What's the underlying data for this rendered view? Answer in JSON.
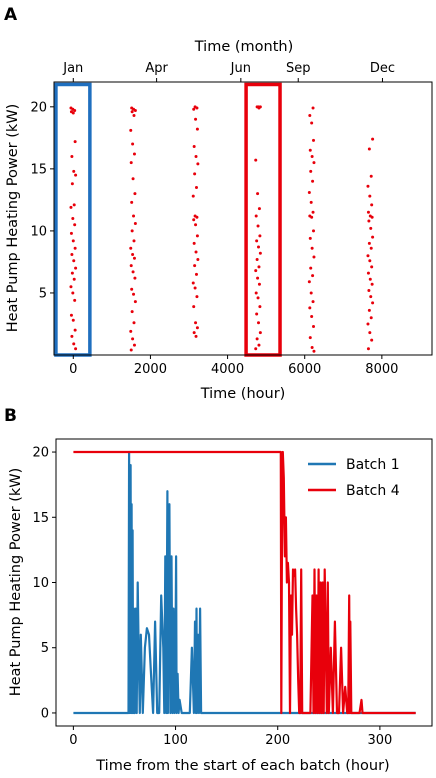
{
  "panels": {
    "a_label": "A",
    "b_label": "B"
  },
  "chart_data": [
    {
      "type": "scatter",
      "panel": "A",
      "xlabel": "Time (hour)",
      "ylabel": "Heat Pump Heating Power (kW)",
      "xlim": [
        -500,
        9300
      ],
      "ylim": [
        0,
        22
      ],
      "xticks": [
        0,
        2000,
        4000,
        6000,
        8000
      ],
      "yticks": [
        5,
        10,
        15,
        20
      ],
      "top_axis": {
        "label": "Time (month)",
        "ticks": [
          {
            "label": "Jan",
            "x": 0
          },
          {
            "label": "Apr",
            "x": 2160
          },
          {
            "label": "Jun",
            "x": 4344
          },
          {
            "label": "Sep",
            "x": 5832
          },
          {
            "label": "Dec",
            "x": 8016
          }
        ]
      },
      "marker_color": "#e8000b",
      "series": [
        {
          "x_center": 0,
          "values": [
            19.9,
            19.8,
            19.7,
            19.6,
            19.5,
            17.2,
            16.0,
            14.8,
            14.5,
            13.8,
            12.1,
            11.9,
            11.0,
            10.5,
            9.8,
            9.2,
            8.6,
            8.1,
            7.6,
            7.0,
            6.6,
            6.1,
            5.5,
            5.0,
            4.4,
            3.2,
            2.8,
            2.0,
            1.5,
            0.9,
            0.5
          ]
        },
        {
          "x_center": 1550,
          "values": [
            19.9,
            19.8,
            19.7,
            19.6,
            19.3,
            18.1,
            17.0,
            16.2,
            15.5,
            14.2,
            13.0,
            12.3,
            11.2,
            10.6,
            10.0,
            9.2,
            8.6,
            8.1,
            7.8,
            7.2,
            6.7,
            6.2,
            5.3,
            4.9,
            4.3,
            3.5,
            2.6,
            1.9,
            1.3,
            0.8,
            0.4
          ]
        },
        {
          "x_center": 3170,
          "values": [
            20.0,
            19.9,
            19.8,
            19.0,
            18.2,
            16.8,
            16.0,
            15.4,
            14.6,
            13.5,
            12.8,
            11.2,
            11.1,
            10.9,
            10.5,
            9.6,
            9.0,
            8.3,
            7.7,
            7.2,
            6.5,
            5.8,
            5.4,
            4.7,
            3.9,
            2.6,
            2.2,
            1.8,
            1.5
          ]
        },
        {
          "x_center": 4790,
          "values": [
            20.0,
            20.0,
            20.0,
            19.9,
            15.7,
            13.0,
            11.8,
            11.2,
            10.4,
            9.6,
            9.2,
            8.7,
            8.2,
            7.7,
            7.1,
            6.8,
            6.2,
            5.7,
            5.0,
            4.6,
            3.9,
            3.3,
            2.6,
            1.8,
            1.3,
            0.8,
            0.5
          ]
        },
        {
          "x_center": 6180,
          "values": [
            19.9,
            19.3,
            18.7,
            17.3,
            16.5,
            16.0,
            15.5,
            14.8,
            14.0,
            13.1,
            12.3,
            11.5,
            11.2,
            11.1,
            10.0,
            9.4,
            8.6,
            7.9,
            7.0,
            6.4,
            5.9,
            5.0,
            4.3,
            3.8,
            3.1,
            2.3,
            1.4,
            0.6,
            0.3
          ]
        },
        {
          "x_center": 7700,
          "values": [
            17.4,
            16.6,
            14.4,
            13.6,
            12.8,
            12.1,
            11.5,
            11.2,
            11.1,
            10.8,
            10.2,
            9.5,
            9.0,
            8.6,
            8.0,
            7.6,
            7.1,
            6.6,
            6.1,
            5.7,
            5.2,
            4.7,
            4.2,
            3.6,
            3.0,
            2.5,
            1.8,
            1.2,
            0.5
          ]
        }
      ],
      "highlight_boxes": [
        {
          "name": "blue",
          "color": "#1f6fbf",
          "x_range": [
            -450,
            430
          ],
          "y_range": [
            0,
            21.8
          ]
        },
        {
          "name": "red",
          "color": "#e8000b",
          "x_range": [
            4480,
            5360
          ],
          "y_range": [
            0,
            21.8
          ]
        }
      ]
    },
    {
      "type": "line",
      "panel": "B",
      "xlabel": "Time from the start of each batch (hour)",
      "ylabel": "Heat Pump Heating Power (kW)",
      "xlim": [
        -17,
        351
      ],
      "ylim": [
        -1,
        21
      ],
      "xticks": [
        0,
        100,
        200,
        300
      ],
      "yticks": [
        0,
        5,
        10,
        15,
        20
      ],
      "legend_position": "top-right",
      "series": [
        {
          "name": "Batch 1",
          "color": "#1f77b4",
          "x": [
            0,
            54,
            54.5,
            55,
            56,
            56.5,
            57,
            57.5,
            58,
            58.5,
            59,
            59.5,
            60,
            61,
            62,
            63,
            64,
            65,
            66,
            67,
            68,
            70,
            72,
            74,
            76,
            78,
            80,
            82,
            84,
            86,
            88,
            89,
            90,
            91,
            92,
            92.5,
            93,
            94,
            95,
            96,
            97,
            98,
            99,
            100,
            100.5,
            101,
            102,
            103,
            104,
            106,
            108,
            110,
            112,
            114,
            116,
            118,
            119,
            120,
            120.5,
            121,
            122,
            123,
            124,
            125,
            126,
            130,
            200,
            335
          ],
          "y": [
            0,
            0,
            20,
            0,
            19,
            0,
            16,
            0,
            14,
            0,
            8,
            0,
            0,
            8,
            0,
            10,
            4,
            0,
            6,
            3,
            0,
            5,
            6.5,
            6,
            3,
            0,
            7,
            0,
            0,
            9,
            5,
            0,
            12,
            0,
            17,
            0,
            8,
            16,
            0,
            12,
            0,
            8,
            0,
            5,
            12,
            0,
            3,
            0,
            1,
            0,
            0,
            0,
            0,
            0,
            5,
            0,
            7,
            0,
            8,
            0,
            6,
            0,
            8,
            0,
            0,
            0,
            0,
            0
          ]
        },
        {
          "name": "Batch 4",
          "color": "#e8000b",
          "x": [
            0,
            203,
            203.5,
            204,
            205,
            206,
            207,
            208,
            209,
            210,
            211,
            212,
            213,
            214,
            215,
            216,
            217,
            218,
            219,
            220,
            221,
            222,
            223,
            224,
            225,
            226,
            228,
            230,
            232,
            234,
            235,
            236,
            237,
            238,
            239,
            240,
            241,
            242,
            243,
            244,
            245,
            246,
            247,
            248,
            249,
            250,
            252,
            254,
            256,
            258,
            260,
            262,
            264,
            266,
            268,
            269,
            270,
            270.5,
            271,
            272,
            274,
            278,
            280,
            282,
            283,
            284,
            286,
            300,
            335
          ],
          "y": [
            20,
            20,
            0,
            10.5,
            20,
            18,
            12,
            15,
            10,
            11.5,
            10,
            0,
            9,
            6,
            11,
            10.5,
            11,
            8,
            6,
            2.5,
            0,
            0,
            11,
            0,
            0,
            0,
            0,
            0,
            0,
            9,
            0,
            11,
            0,
            9,
            0,
            11,
            0,
            10,
            0,
            10,
            0,
            11,
            6,
            0,
            10,
            0,
            5,
            0,
            7,
            0,
            0,
            5,
            0,
            2,
            0,
            0,
            9,
            0,
            7,
            0,
            0,
            0,
            0,
            1,
            0,
            0,
            0,
            0,
            0
          ]
        }
      ]
    }
  ]
}
